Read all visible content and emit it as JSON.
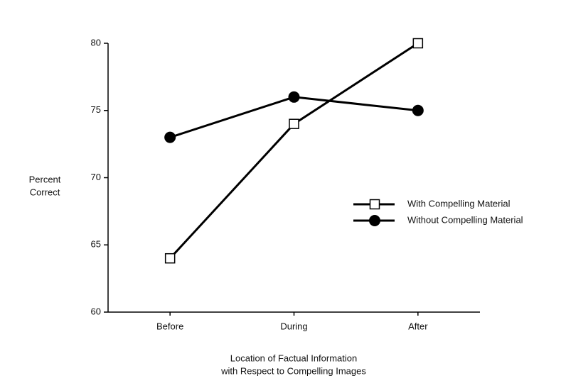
{
  "chart_data": {
    "type": "line",
    "ylabel": [
      "Percent",
      "Correct"
    ],
    "xlabel": [
      "Location of Factual Information",
      "with Respect to Compelling Images"
    ],
    "categories": [
      "Before",
      "During",
      "After"
    ],
    "series": [
      {
        "name": "With Compelling Material",
        "color": "#000000",
        "marker": "square",
        "values": [
          64,
          74,
          80
        ]
      },
      {
        "name": "Without Compelling Material",
        "color": "#000000",
        "marker": "circle",
        "values": [
          73,
          76,
          75
        ]
      }
    ],
    "ylim": [
      60,
      80
    ],
    "yticks": [
      60,
      65,
      70,
      75,
      80
    ],
    "grid": false,
    "legend": "right"
  }
}
